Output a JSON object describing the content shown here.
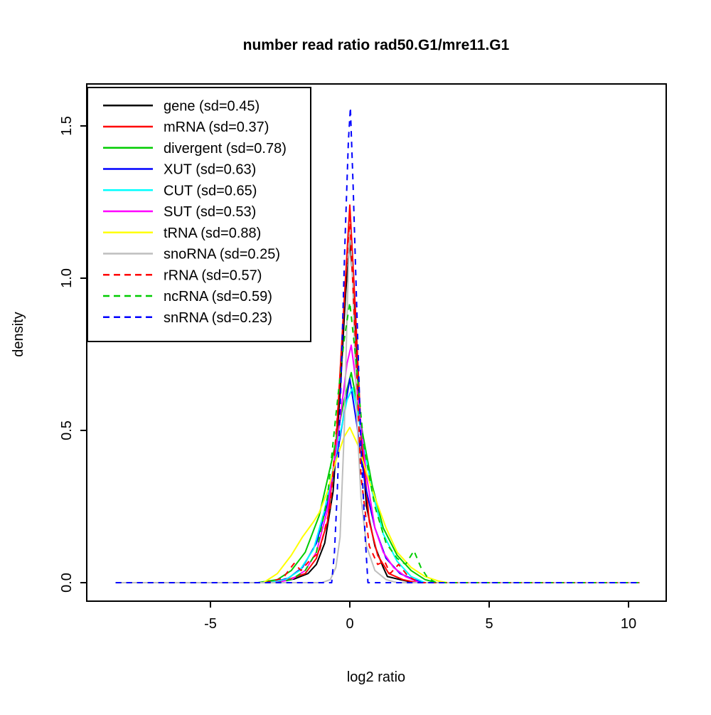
{
  "title": "number read ratio rad50.G1/mre11.G1",
  "chart_data": {
    "type": "line",
    "title": "number read ratio rad50.G1/mre11.G1",
    "xlabel": "log2 ratio",
    "ylabel": "density",
    "xlim": [
      -9.4,
      11.35
    ],
    "ylim": [
      -0.06,
      1.63
    ],
    "grid": "off",
    "legend_position": "top-left",
    "x_ticks": [
      {
        "value": -5,
        "label": "-5"
      },
      {
        "value": 0,
        "label": "0"
      },
      {
        "value": 5,
        "label": "5"
      },
      {
        "value": 10,
        "label": "10"
      }
    ],
    "y_ticks": [
      {
        "value": 0.0,
        "label": "0.0"
      },
      {
        "value": 0.5,
        "label": "0.5"
      },
      {
        "value": 1.0,
        "label": "1.0"
      },
      {
        "value": 1.5,
        "label": "1.5"
      }
    ],
    "series": [
      {
        "name": "gene",
        "label": "gene (sd=0.45)",
        "sd": 0.45,
        "color": "#000000",
        "dash": false,
        "peak": 1.12,
        "points": [
          [
            -8.4,
            0
          ],
          [
            -3.2,
            0
          ],
          [
            -2.5,
            0.005
          ],
          [
            -2.0,
            0.012
          ],
          [
            -1.5,
            0.03
          ],
          [
            -1.2,
            0.06
          ],
          [
            -0.9,
            0.13
          ],
          [
            -0.6,
            0.3
          ],
          [
            -0.35,
            0.62
          ],
          [
            -0.15,
            0.95
          ],
          [
            0,
            1.12
          ],
          [
            0.15,
            0.95
          ],
          [
            0.35,
            0.55
          ],
          [
            0.6,
            0.25
          ],
          [
            0.9,
            0.12
          ],
          [
            1.2,
            0.05
          ],
          [
            1.35,
            0.02
          ],
          [
            1.8,
            0.01
          ],
          [
            2.3,
            0
          ],
          [
            10.4,
            0
          ]
        ]
      },
      {
        "name": "mRNA",
        "label": "mRNA (sd=0.37)",
        "sd": 0.37,
        "color": "#FF0000",
        "dash": false,
        "peak": 1.24,
        "points": [
          [
            -8.4,
            0
          ],
          [
            -3.0,
            0
          ],
          [
            -2.2,
            0.01
          ],
          [
            -1.6,
            0.03
          ],
          [
            -1.2,
            0.08
          ],
          [
            -0.8,
            0.2
          ],
          [
            -0.5,
            0.45
          ],
          [
            -0.25,
            0.85
          ],
          [
            0,
            1.24
          ],
          [
            0.2,
            0.9
          ],
          [
            0.4,
            0.5
          ],
          [
            0.7,
            0.2
          ],
          [
            1.0,
            0.09
          ],
          [
            1.4,
            0.03
          ],
          [
            1.9,
            0.01
          ],
          [
            2.4,
            0
          ],
          [
            10.4,
            0
          ]
        ]
      },
      {
        "name": "divergent",
        "label": "divergent (sd=0.78)",
        "sd": 0.78,
        "color": "#00CC00",
        "dash": false,
        "peak": 0.69,
        "points": [
          [
            -8.4,
            0
          ],
          [
            -3.3,
            0
          ],
          [
            -2.6,
            0.01
          ],
          [
            -2.1,
            0.04
          ],
          [
            -1.6,
            0.1
          ],
          [
            -1.1,
            0.22
          ],
          [
            -0.6,
            0.42
          ],
          [
            -0.2,
            0.6
          ],
          [
            0.05,
            0.69
          ],
          [
            0.4,
            0.52
          ],
          [
            0.8,
            0.32
          ],
          [
            1.2,
            0.18
          ],
          [
            1.7,
            0.09
          ],
          [
            2.2,
            0.04
          ],
          [
            2.7,
            0.01
          ],
          [
            3.1,
            0
          ],
          [
            10.4,
            0
          ]
        ]
      },
      {
        "name": "XUT",
        "label": "XUT (sd=0.63)",
        "sd": 0.63,
        "color": "#0000FF",
        "dash": false,
        "peak": 0.67,
        "points": [
          [
            -8.4,
            0
          ],
          [
            -2.8,
            0
          ],
          [
            -2.2,
            0.015
          ],
          [
            -1.7,
            0.05
          ],
          [
            -1.2,
            0.13
          ],
          [
            -0.8,
            0.26
          ],
          [
            -0.4,
            0.45
          ],
          [
            0,
            0.67
          ],
          [
            0.25,
            0.52
          ],
          [
            0.55,
            0.32
          ],
          [
            0.9,
            0.18
          ],
          [
            1.3,
            0.08
          ],
          [
            1.8,
            0.03
          ],
          [
            2.3,
            0.01
          ],
          [
            2.7,
            0
          ],
          [
            10.4,
            0
          ]
        ]
      },
      {
        "name": "CUT",
        "label": "CUT (sd=0.65)",
        "sd": 0.65,
        "color": "#00FFFF",
        "dash": false,
        "peak": 0.64,
        "points": [
          [
            -8.4,
            0
          ],
          [
            -2.9,
            0
          ],
          [
            -2.3,
            0.01
          ],
          [
            -1.8,
            0.04
          ],
          [
            -1.3,
            0.11
          ],
          [
            -0.9,
            0.24
          ],
          [
            -0.5,
            0.42
          ],
          [
            -0.1,
            0.6
          ],
          [
            0.1,
            0.64
          ],
          [
            0.4,
            0.5
          ],
          [
            0.8,
            0.3
          ],
          [
            1.2,
            0.16
          ],
          [
            1.7,
            0.07
          ],
          [
            2.2,
            0.02
          ],
          [
            2.7,
            0
          ],
          [
            10.4,
            0
          ]
        ]
      },
      {
        "name": "SUT",
        "label": "SUT (sd=0.53)",
        "sd": 0.53,
        "color": "#FF00FF",
        "dash": false,
        "peak": 0.78,
        "points": [
          [
            -8.4,
            0
          ],
          [
            -2.7,
            0
          ],
          [
            -2.1,
            0.01
          ],
          [
            -1.6,
            0.04
          ],
          [
            -1.2,
            0.1
          ],
          [
            -0.8,
            0.24
          ],
          [
            -0.4,
            0.5
          ],
          [
            -0.1,
            0.72
          ],
          [
            0.05,
            0.78
          ],
          [
            0.3,
            0.6
          ],
          [
            0.6,
            0.35
          ],
          [
            0.9,
            0.18
          ],
          [
            1.2,
            0.1
          ],
          [
            1.57,
            0.05
          ],
          [
            2.0,
            0.02
          ],
          [
            2.5,
            0
          ],
          [
            10.4,
            0
          ]
        ]
      },
      {
        "name": "tRNA",
        "label": "tRNA (sd=0.88)",
        "sd": 0.88,
        "color": "#FFFF00",
        "dash": false,
        "peak": 0.51,
        "points": [
          [
            -8.4,
            0
          ],
          [
            -3.1,
            0
          ],
          [
            -2.6,
            0.03
          ],
          [
            -2.1,
            0.09
          ],
          [
            -1.7,
            0.15
          ],
          [
            -1.3,
            0.2
          ],
          [
            -1.1,
            0.23
          ],
          [
            -0.8,
            0.3
          ],
          [
            -0.5,
            0.4
          ],
          [
            -0.2,
            0.48
          ],
          [
            0,
            0.51
          ],
          [
            0.3,
            0.45
          ],
          [
            0.6,
            0.36
          ],
          [
            0.9,
            0.28
          ],
          [
            1.3,
            0.18
          ],
          [
            1.7,
            0.1
          ],
          [
            2.2,
            0.05
          ],
          [
            2.7,
            0.02
          ],
          [
            3.2,
            0.005
          ],
          [
            3.5,
            0
          ],
          [
            10.4,
            0
          ]
        ]
      },
      {
        "name": "snoRNA",
        "label": "snoRNA (sd=0.25)",
        "sd": 0.25,
        "color": "#BEBEBE",
        "dash": false,
        "peak": 1.18,
        "points": [
          [
            -8.4,
            0
          ],
          [
            -1.0,
            0
          ],
          [
            -0.7,
            0.01
          ],
          [
            -0.5,
            0.05
          ],
          [
            -0.35,
            0.15
          ],
          [
            -0.2,
            0.5
          ],
          [
            -0.08,
            0.95
          ],
          [
            0,
            1.18
          ],
          [
            0.1,
            1.0
          ],
          [
            0.25,
            0.55
          ],
          [
            0.4,
            0.28
          ],
          [
            0.6,
            0.12
          ],
          [
            0.9,
            0.04
          ],
          [
            1.3,
            0.01
          ],
          [
            1.7,
            0
          ],
          [
            10.4,
            0
          ]
        ]
      },
      {
        "name": "rRNA",
        "label": "rRNA (sd=0.57)",
        "sd": 0.57,
        "color": "#FF0000",
        "dash": true,
        "peak": 1.2,
        "points": [
          [
            -8.4,
            0
          ],
          [
            -3.0,
            0
          ],
          [
            -2.4,
            0.015
          ],
          [
            -2.0,
            0.063
          ],
          [
            -1.75,
            0.04
          ],
          [
            -1.45,
            0.072
          ],
          [
            -1.1,
            0.1
          ],
          [
            -0.7,
            0.25
          ],
          [
            -0.4,
            0.6
          ],
          [
            -0.15,
            1.0
          ],
          [
            0,
            1.2
          ],
          [
            0.2,
            0.8
          ],
          [
            0.4,
            0.35
          ],
          [
            0.7,
            0.12
          ],
          [
            1.0,
            0.06
          ],
          [
            1.25,
            0.07
          ],
          [
            1.45,
            0.03
          ],
          [
            1.75,
            0.06
          ],
          [
            2.1,
            0.02
          ],
          [
            2.5,
            0
          ],
          [
            10.4,
            0
          ]
        ]
      },
      {
        "name": "ncRNA",
        "label": "ncRNA (sd=0.59)",
        "sd": 0.59,
        "color": "#00CC00",
        "dash": true,
        "peak": 0.92,
        "points": [
          [
            -8.4,
            0
          ],
          [
            -2.6,
            0
          ],
          [
            -2.1,
            0.01
          ],
          [
            -1.6,
            0.04
          ],
          [
            -1.2,
            0.1
          ],
          [
            -0.8,
            0.28
          ],
          [
            -0.5,
            0.55
          ],
          [
            -0.2,
            0.8
          ],
          [
            0,
            0.92
          ],
          [
            0.2,
            0.75
          ],
          [
            0.5,
            0.45
          ],
          [
            0.9,
            0.25
          ],
          [
            1.3,
            0.13
          ],
          [
            1.7,
            0.08
          ],
          [
            2.0,
            0.06
          ],
          [
            2.3,
            0.105
          ],
          [
            2.55,
            0.05
          ],
          [
            2.8,
            0.015
          ],
          [
            3.1,
            0
          ],
          [
            10.4,
            0
          ]
        ]
      },
      {
        "name": "snRNA",
        "label": "snRNA (sd=0.23)",
        "sd": 0.23,
        "color": "#0000FF",
        "dash": true,
        "peak": 1.56,
        "points": [
          [
            -8.4,
            0
          ],
          [
            -0.65,
            0
          ],
          [
            -0.55,
            0.1
          ],
          [
            -0.45,
            0.3
          ],
          [
            -0.32,
            0.65
          ],
          [
            -0.18,
            1.1
          ],
          [
            -0.05,
            1.45
          ],
          [
            0.02,
            1.56
          ],
          [
            0.12,
            1.3
          ],
          [
            0.25,
            0.9
          ],
          [
            0.4,
            0.45
          ],
          [
            0.55,
            0.15
          ],
          [
            0.65,
            0
          ],
          [
            10.4,
            0
          ]
        ]
      }
    ]
  }
}
